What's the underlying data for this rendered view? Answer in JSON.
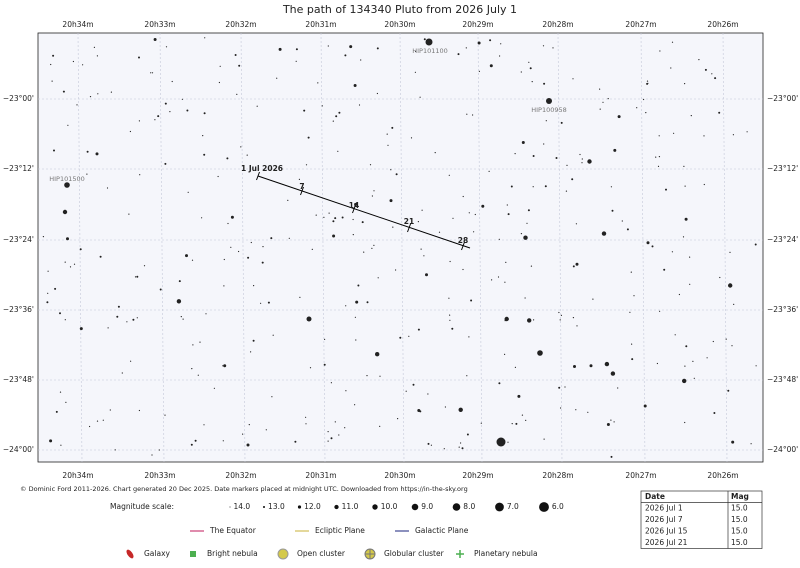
{
  "title": "The path of 134340 Pluto from 2026 July 1",
  "ra_labels": [
    "20h34m",
    "20h33m",
    "20h32m",
    "20h31m",
    "20h30m",
    "20h29m",
    "20h28m",
    "20h27m",
    "20h26m"
  ],
  "dec_labels": [
    "−23°00'",
    "−23°12'",
    "−23°24'",
    "−23°36'",
    "−23°48'",
    "−24°00'"
  ],
  "path_labels": [
    "1 Jul 2026",
    "7",
    "14",
    "21",
    "28"
  ],
  "star_labels": [
    "HIP101100",
    "HIP100958",
    "HIP101500"
  ],
  "footer": "© Dominic Ford 2011-2026. Chart generated 20 Dec 2025. Date markers placed at midnight UTC. Downloaded from https://in-the-sky.org",
  "magnitude_scale": {
    "label": "Magnitude scale:",
    "items": [
      "14.0",
      "13.0",
      "12.0",
      "11.0",
      "10.0",
      "9.0",
      "8.0",
      "7.0",
      "6.0"
    ]
  },
  "legend_lines": [
    "The Equator",
    "Ecliptic Plane",
    "Galactic Plane"
  ],
  "legend_objects": [
    "Galaxy",
    "Bright nebula",
    "Open cluster",
    "Globular cluster",
    "Planetary nebula"
  ],
  "table": {
    "header": [
      "Date",
      "Mag"
    ],
    "rows": [
      [
        "2026 Jul 1",
        "15.0"
      ],
      [
        "2026 Jul 7",
        "15.0"
      ],
      [
        "2026 Jul 15",
        "15.0"
      ],
      [
        "2026 Jul 21",
        "15.0"
      ]
    ]
  }
}
